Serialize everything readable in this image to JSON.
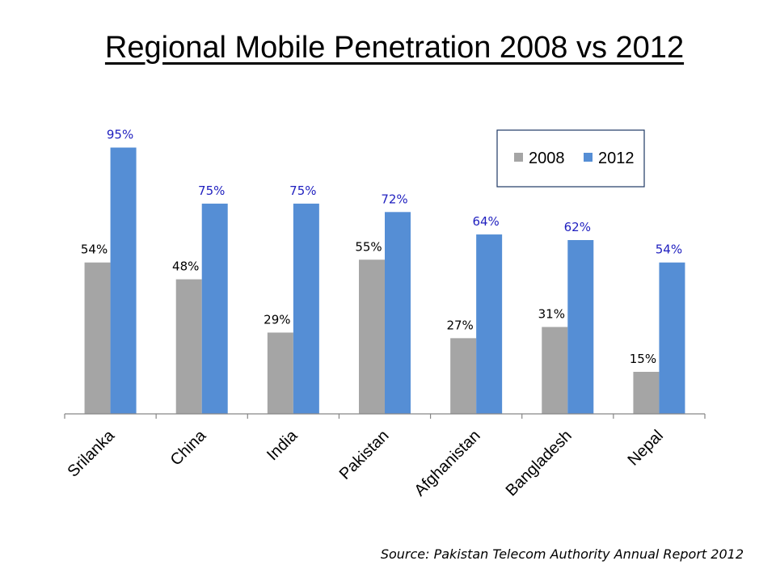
{
  "title": "Regional Mobile Penetration 2008 vs 2012",
  "source": "Source: Pakistan Telecom Authority Annual Report 2012",
  "chart_data": {
    "type": "bar",
    "categories": [
      "Srilanka",
      "China",
      "India",
      "Pakistan",
      "Afghanistan",
      "Bangladesh",
      "Nepal"
    ],
    "series": [
      {
        "name": "2008",
        "color": "#a5a5a5",
        "label_color": "#000000",
        "values": [
          54,
          48,
          29,
          55,
          27,
          31,
          15
        ],
        "labels": [
          "54%",
          "48%",
          "29%",
          "55%",
          "27%",
          "31%",
          "15%"
        ]
      },
      {
        "name": "2012",
        "color": "#558ed5",
        "label_color": "#1f1fbf",
        "values": [
          95,
          75,
          75,
          72,
          64,
          62,
          54
        ],
        "labels": [
          "95%",
          "75%",
          "75%",
          "72%",
          "64%",
          "62%",
          "54%"
        ]
      }
    ],
    "ylim": [
      0,
      100
    ],
    "grid": false,
    "legend": "top-right"
  }
}
